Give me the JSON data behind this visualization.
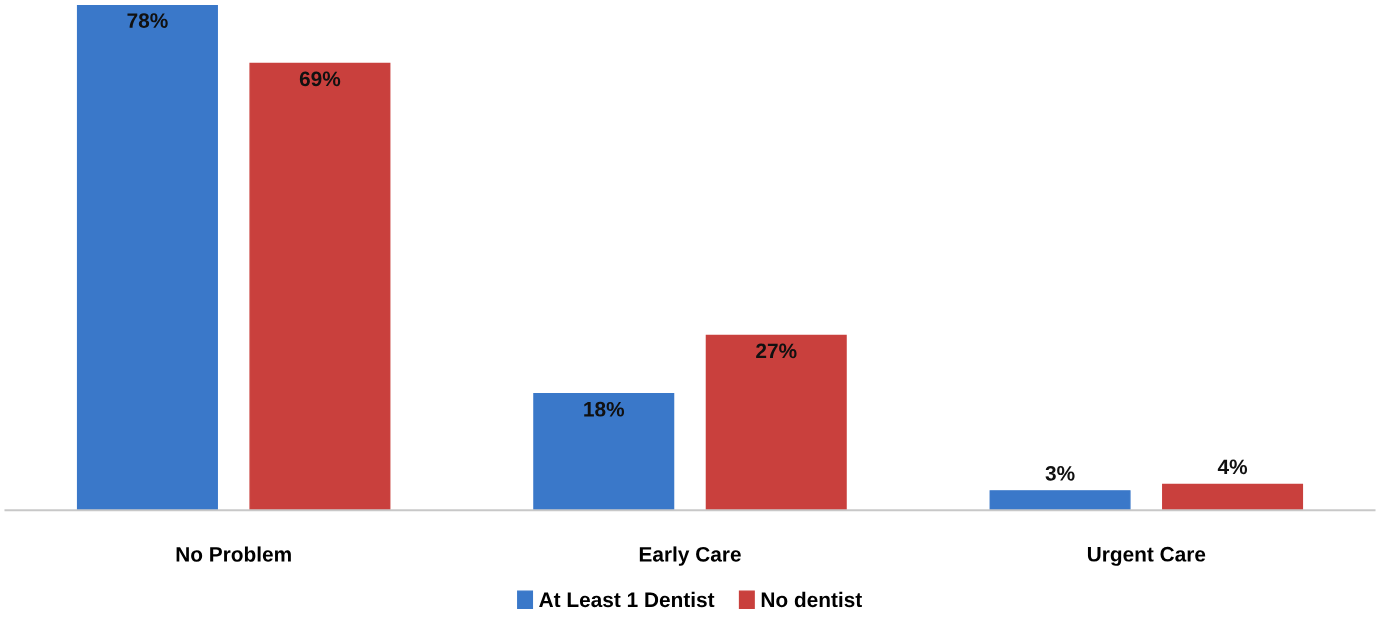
{
  "chart_data": {
    "type": "bar",
    "categories": [
      "No Problem",
      "Early Care",
      "Urgent Care"
    ],
    "series": [
      {
        "name": "At Least 1 Dentist",
        "color": "#3a78c9",
        "values": [
          78,
          18,
          3
        ],
        "value_labels": [
          "78%",
          "18%",
          "3%"
        ]
      },
      {
        "name": "No dentist",
        "color": "#c9403d",
        "values": [
          69,
          27,
          4
        ],
        "value_labels": [
          "69%",
          "27%",
          "4%"
        ]
      }
    ],
    "ylim": [
      0,
      78
    ],
    "tick_labels": "x",
    "grid": false,
    "legend": "bottom"
  }
}
